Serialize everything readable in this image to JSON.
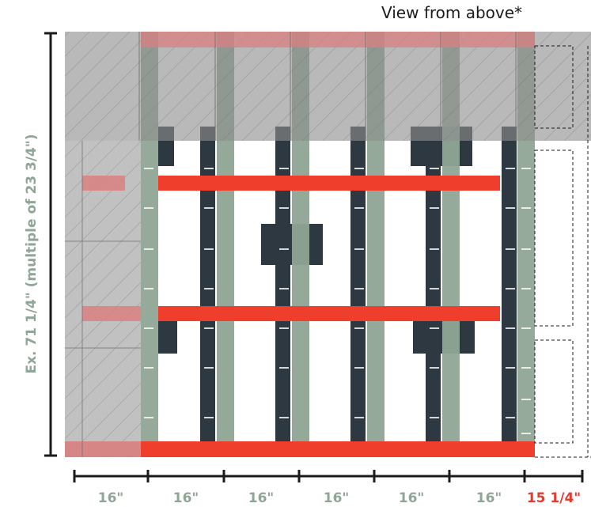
{
  "title": "View from above*",
  "vertical_label": "Ex. 71 1/4\" (multiple of 23 3/4\")",
  "spacing_labels": [
    "16\"",
    "16\"",
    "16\"",
    "16\"",
    "16\"",
    "16\""
  ],
  "last_spacing_label": "15 1/4\"",
  "colors": {
    "joist": "#8fa595",
    "beam": "#2d3841",
    "blocking": "#f03e2c",
    "slab": "#9e9e9e",
    "label_green": "#8fa595",
    "label_red": "#e8392c"
  }
}
